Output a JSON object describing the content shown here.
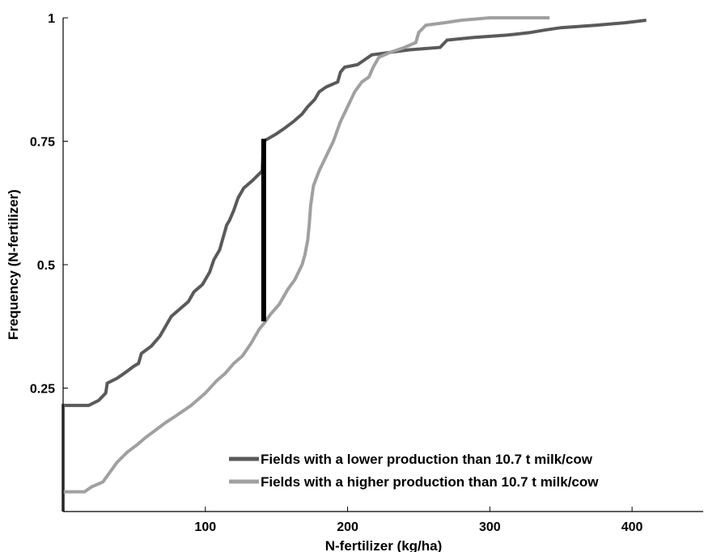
{
  "chart_data": {
    "type": "line",
    "subtype": "empirical-cdf",
    "xlabel": "N-fertilizer (kg/ha)",
    "ylabel": "Frequency (N-fertilizer)",
    "xlim": [
      0,
      450
    ],
    "ylim": [
      0,
      1
    ],
    "x_ticks": [
      100,
      200,
      300,
      400
    ],
    "x_tick_labels": [
      "100",
      "200",
      "300",
      "400"
    ],
    "y_ticks": [
      0.25,
      0.5,
      0.75,
      1
    ],
    "y_tick_labels": [
      "0.25",
      "0.5",
      "0.75",
      "1"
    ],
    "grid": false,
    "legend_position": "bottom-right",
    "series": [
      {
        "name": "Fields with a lower production than 10.7 t milk/cow",
        "color": "#5a5a5a",
        "points": [
          [
            0,
            0.0
          ],
          [
            0,
            0.215
          ],
          [
            18,
            0.215
          ],
          [
            25,
            0.225
          ],
          [
            30,
            0.24
          ],
          [
            31,
            0.26
          ],
          [
            38,
            0.27
          ],
          [
            43,
            0.28
          ],
          [
            50,
            0.295
          ],
          [
            53,
            0.3
          ],
          [
            55,
            0.32
          ],
          [
            62,
            0.335
          ],
          [
            68,
            0.355
          ],
          [
            72,
            0.375
          ],
          [
            76,
            0.395
          ],
          [
            82,
            0.41
          ],
          [
            88,
            0.425
          ],
          [
            92,
            0.445
          ],
          [
            98,
            0.46
          ],
          [
            103,
            0.485
          ],
          [
            106,
            0.51
          ],
          [
            110,
            0.53
          ],
          [
            113,
            0.56
          ],
          [
            115,
            0.58
          ],
          [
            117,
            0.59
          ],
          [
            120,
            0.61
          ],
          [
            123,
            0.635
          ],
          [
            127,
            0.655
          ],
          [
            133,
            0.67
          ],
          [
            140,
            0.69
          ],
          [
            141,
            0.75
          ],
          [
            150,
            0.765
          ],
          [
            155,
            0.775
          ],
          [
            162,
            0.79
          ],
          [
            168,
            0.805
          ],
          [
            172,
            0.82
          ],
          [
            177,
            0.835
          ],
          [
            180,
            0.85
          ],
          [
            185,
            0.86
          ],
          [
            193,
            0.87
          ],
          [
            195,
            0.89
          ],
          [
            198,
            0.9
          ],
          [
            207,
            0.905
          ],
          [
            212,
            0.915
          ],
          [
            217,
            0.925
          ],
          [
            230,
            0.93
          ],
          [
            243,
            0.935
          ],
          [
            265,
            0.94
          ],
          [
            270,
            0.955
          ],
          [
            288,
            0.96
          ],
          [
            312,
            0.965
          ],
          [
            328,
            0.97
          ],
          [
            338,
            0.975
          ],
          [
            350,
            0.98
          ],
          [
            375,
            0.985
          ],
          [
            395,
            0.99
          ],
          [
            410,
            0.995
          ]
        ]
      },
      {
        "name": "Fields with a higher production than 10.7 t milk/cow",
        "color": "#a0a0a0",
        "points": [
          [
            0,
            0.04
          ],
          [
            15,
            0.04
          ],
          [
            20,
            0.05
          ],
          [
            28,
            0.06
          ],
          [
            33,
            0.08
          ],
          [
            38,
            0.1
          ],
          [
            45,
            0.12
          ],
          [
            52,
            0.135
          ],
          [
            58,
            0.15
          ],
          [
            65,
            0.165
          ],
          [
            72,
            0.18
          ],
          [
            80,
            0.195
          ],
          [
            90,
            0.215
          ],
          [
            100,
            0.24
          ],
          [
            108,
            0.265
          ],
          [
            114,
            0.28
          ],
          [
            120,
            0.3
          ],
          [
            126,
            0.315
          ],
          [
            132,
            0.34
          ],
          [
            138,
            0.37
          ],
          [
            141,
            0.38
          ],
          [
            146,
            0.4
          ],
          [
            152,
            0.42
          ],
          [
            158,
            0.45
          ],
          [
            163,
            0.47
          ],
          [
            168,
            0.5
          ],
          [
            170,
            0.52
          ],
          [
            172,
            0.55
          ],
          [
            173,
            0.58
          ],
          [
            174,
            0.62
          ],
          [
            176,
            0.66
          ],
          [
            180,
            0.69
          ],
          [
            185,
            0.72
          ],
          [
            190,
            0.75
          ],
          [
            195,
            0.79
          ],
          [
            200,
            0.82
          ],
          [
            205,
            0.85
          ],
          [
            210,
            0.87
          ],
          [
            215,
            0.88
          ],
          [
            218,
            0.9
          ],
          [
            222,
            0.92
          ],
          [
            230,
            0.93
          ],
          [
            240,
            0.94
          ],
          [
            248,
            0.95
          ],
          [
            250,
            0.97
          ],
          [
            255,
            0.985
          ],
          [
            268,
            0.99
          ],
          [
            280,
            0.995
          ],
          [
            300,
            1.0
          ],
          [
            342,
            1.0
          ]
        ]
      }
    ],
    "annotations": [
      {
        "type": "vertical-line",
        "color": "#000000",
        "x": 141,
        "y_from": 0.385,
        "y_to": 0.755,
        "meaning": "maximum vertical distance between the two curves"
      }
    ]
  }
}
